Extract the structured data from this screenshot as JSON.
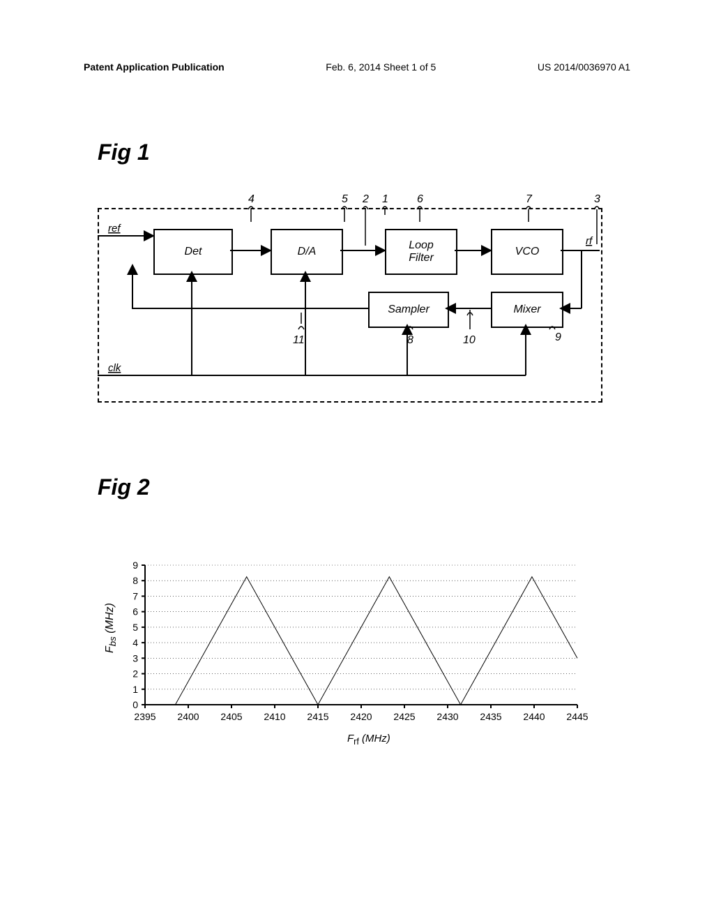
{
  "header": {
    "left": "Patent Application Publication",
    "center": "Feb. 6, 2014   Sheet 1 of 5",
    "right": "US 2014/0036970 A1"
  },
  "fig1": {
    "label": "Fig 1",
    "blocks": {
      "det": "Det",
      "da": "D/A",
      "loop": "Loop\nFilter",
      "vco": "VCO",
      "sampler": "Sampler",
      "mixer": "Mixer"
    },
    "io": {
      "ref": "ref",
      "clk": "clk",
      "rf": "rf"
    },
    "refnums": {
      "n1": "1",
      "n2": "2",
      "n3": "3",
      "n4": "4",
      "n5": "5",
      "n6": "6",
      "n7": "7",
      "n8": "8",
      "n9": "9",
      "n10": "10",
      "n11": "11"
    }
  },
  "fig2": {
    "label": "Fig 2",
    "chart": {
      "type": "line",
      "xlabel_prefix": "F",
      "xlabel_sub": "rf",
      "xlabel_unit": " (MHz)",
      "ylabel_prefix": "F",
      "ylabel_sub": "bs",
      "ylabel_unit": " (MHz)",
      "xlim": [
        2395,
        2445
      ],
      "ylim": [
        0,
        9
      ],
      "xticks": [
        2395,
        2400,
        2405,
        2410,
        2415,
        2420,
        2425,
        2430,
        2435,
        2440,
        2445
      ],
      "yticks": [
        0,
        1,
        2,
        3,
        4,
        5,
        6,
        7,
        8,
        9
      ],
      "data": [
        {
          "x": 2398.5,
          "y": 0
        },
        {
          "x": 2406.75,
          "y": 8.25
        },
        {
          "x": 2415,
          "y": 0
        },
        {
          "x": 2423.25,
          "y": 8.25
        },
        {
          "x": 2431.5,
          "y": 0
        },
        {
          "x": 2439.75,
          "y": 8.25
        },
        {
          "x": 2445,
          "y": 3
        }
      ],
      "background_color": "#ffffff",
      "grid_color": "#000000",
      "line_color": "#000000",
      "line_width": 1,
      "label_fontsize": 14
    }
  }
}
